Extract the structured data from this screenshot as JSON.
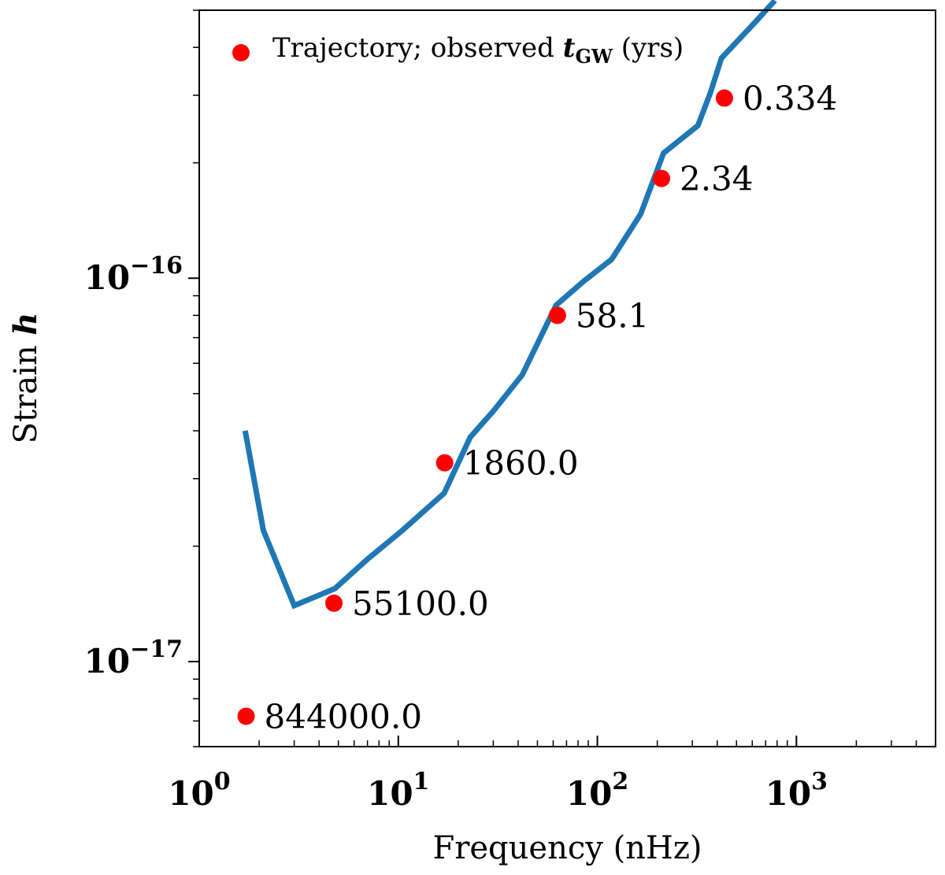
{
  "chart_data": {
    "type": "line",
    "xlabel": "Frequency (nHz)",
    "ylabel_prefix": "Strain ",
    "ylabel_symbol": "h",
    "xscale": "log",
    "yscale": "log",
    "xlim": [
      1,
      5000
    ],
    "ylim": [
      6e-18,
      5e-16
    ],
    "grid": false,
    "legend_position": "top-left",
    "x_tick_labels": [
      {
        "value": 1,
        "base": "10",
        "exp": "0"
      },
      {
        "value": 10,
        "base": "10",
        "exp": "1"
      },
      {
        "value": 100,
        "base": "10",
        "exp": "2"
      },
      {
        "value": 1000,
        "base": "10",
        "exp": "3"
      }
    ],
    "y_tick_labels": [
      {
        "value": 1e-17,
        "base": "10",
        "exp": "−17"
      },
      {
        "value": 1e-16,
        "base": "10",
        "exp": "−16"
      }
    ],
    "series": [
      {
        "kind": "line",
        "color": "#1f77b4",
        "x": [
          1.7,
          2.1,
          3.0,
          4.8,
          7.0,
          10.5,
          17.0,
          23.0,
          30.0,
          42.0,
          62.0,
          85.0,
          118.0,
          165.0,
          215.0,
          320.0,
          370.0,
          420.0,
          620.0,
          780.0
        ],
        "y": [
          4e-17,
          2.2e-17,
          1.4e-17,
          1.55e-17,
          1.85e-17,
          2.2e-17,
          2.75e-17,
          3.85e-17,
          4.5e-17,
          5.6e-17,
          8.5e-17,
          9.8e-17,
          1.12e-16,
          1.47e-16,
          2.12e-16,
          2.5e-16,
          3.05e-16,
          3.75e-16,
          4.65e-16,
          5.3e-16
        ]
      },
      {
        "kind": "scatter",
        "color": "#ff0000",
        "name_prefix": "Trajectory; observed ",
        "name_symbol": "t",
        "name_subscript": "GW",
        "name_suffix": " (yrs)",
        "points": [
          {
            "x": 1.72,
            "y": 7.2e-18,
            "label": "844000.0"
          },
          {
            "x": 4.75,
            "y": 1.42e-17,
            "label": "55100.0"
          },
          {
            "x": 17.1,
            "y": 3.3e-17,
            "label": "1860.0"
          },
          {
            "x": 63.0,
            "y": 8e-17,
            "label": "58.1"
          },
          {
            "x": 210.0,
            "y": 1.82e-16,
            "label": "2.34"
          },
          {
            "x": 435.0,
            "y": 2.95e-16,
            "label": "0.334"
          }
        ]
      }
    ]
  }
}
